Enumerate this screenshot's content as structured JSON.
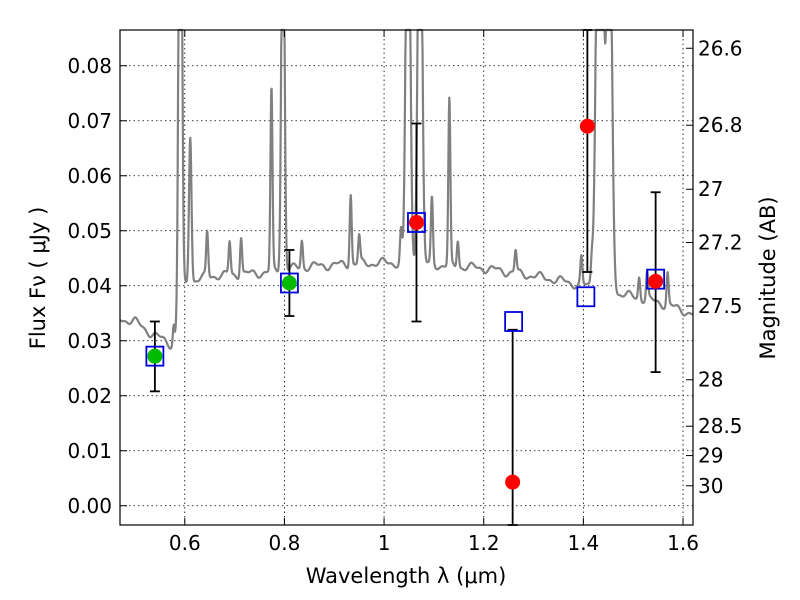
{
  "chart_data": {
    "type": "scatter",
    "xlabel": "Wavelength  λ (μm)",
    "ylabel": "Flux  Fν  ( μJy )",
    "ylabel_right": "Magnitude (AB)",
    "xlim": [
      0.47,
      1.62
    ],
    "ylim": [
      -0.0035,
      0.0865
    ],
    "x_ticks": [
      0.6,
      0.8,
      1.0,
      1.2,
      1.4,
      1.6
    ],
    "x_tick_labels": [
      "0.6",
      "0.8",
      "1",
      "1.2",
      "1.4",
      "1.6"
    ],
    "y_ticks": [
      0.0,
      0.01,
      0.02,
      0.03,
      0.04,
      0.05,
      0.06,
      0.07,
      0.08
    ],
    "y_tick_labels": [
      "0.00",
      "0.01",
      "0.02",
      "0.03",
      "0.04",
      "0.05",
      "0.06",
      "0.07",
      "0.08"
    ],
    "mag_ticks": [
      "26.6",
      "26.8",
      "27",
      "27.2",
      "27.5",
      "28",
      "28.5",
      "29",
      "30"
    ],
    "grid": true,
    "spectrum": {
      "color": "#808080",
      "continuum": [
        [
          0.47,
          0.034
        ],
        [
          0.5,
          0.0335
        ],
        [
          0.53,
          0.0315
        ],
        [
          0.56,
          0.03
        ],
        [
          0.575,
          0.0292
        ],
        [
          0.58,
          0.029
        ],
        [
          0.59,
          0.0395
        ],
        [
          0.62,
          0.041
        ],
        [
          0.65,
          0.0418
        ],
        [
          0.7,
          0.042
        ],
        [
          0.75,
          0.0423
        ],
        [
          0.8,
          0.043
        ],
        [
          0.85,
          0.0435
        ],
        [
          0.9,
          0.0438
        ],
        [
          0.95,
          0.044
        ],
        [
          1.0,
          0.0442
        ],
        [
          1.05,
          0.044
        ],
        [
          1.1,
          0.0438
        ],
        [
          1.15,
          0.0435
        ],
        [
          1.2,
          0.0432
        ],
        [
          1.25,
          0.0425
        ],
        [
          1.3,
          0.0418
        ],
        [
          1.35,
          0.041
        ],
        [
          1.4,
          0.04
        ],
        [
          1.45,
          0.039
        ],
        [
          1.5,
          0.038
        ],
        [
          1.55,
          0.037
        ],
        [
          1.6,
          0.0355
        ],
        [
          1.62,
          0.0348
        ]
      ],
      "lines": [
        [
          0.578,
          0.004,
          0.002
        ],
        [
          0.591,
          0.12,
          0.003
        ],
        [
          0.611,
          0.027,
          0.0025
        ],
        [
          0.645,
          0.008,
          0.002
        ],
        [
          0.69,
          0.006,
          0.002
        ],
        [
          0.713,
          0.007,
          0.002
        ],
        [
          0.774,
          0.033,
          0.002
        ],
        [
          0.797,
          0.08,
          0.003
        ],
        [
          0.835,
          0.005,
          0.002
        ],
        [
          0.933,
          0.013,
          0.002
        ],
        [
          0.95,
          0.005,
          0.002
        ],
        [
          1.034,
          0.006,
          0.002
        ],
        [
          1.048,
          0.09,
          0.004
        ],
        [
          1.072,
          0.09,
          0.004
        ],
        [
          1.096,
          0.012,
          0.002
        ],
        [
          1.131,
          0.03,
          0.002
        ],
        [
          1.148,
          0.005,
          0.002
        ],
        [
          1.264,
          0.004,
          0.002
        ],
        [
          1.396,
          0.005,
          0.002
        ],
        [
          1.417,
          0.004,
          0.002
        ],
        [
          1.433,
          0.12,
          0.006
        ],
        [
          1.452,
          0.08,
          0.005
        ],
        [
          1.512,
          0.004,
          0.002
        ],
        [
          1.528,
          0.005,
          0.002
        ],
        [
          1.569,
          0.006,
          0.002
        ]
      ]
    },
    "model_boxes": {
      "color": "#0000dd",
      "points": [
        [
          0.54,
          0.0272
        ],
        [
          0.81,
          0.0405
        ],
        [
          1.065,
          0.0515
        ],
        [
          1.26,
          0.0335
        ],
        [
          1.405,
          0.038
        ],
        [
          1.545,
          0.0412
        ]
      ]
    },
    "green_points": {
      "color": "#00bb00",
      "points": [
        {
          "x": 0.54,
          "y": 0.0272,
          "lo": 0.0208,
          "hi": 0.0335
        },
        {
          "x": 0.81,
          "y": 0.0405,
          "lo": 0.0345,
          "hi": 0.0465
        }
      ]
    },
    "red_points": {
      "color": "#ff0000",
      "points": [
        {
          "x": 1.065,
          "y": 0.0515,
          "lo": 0.0335,
          "hi": 0.0695
        },
        {
          "x": 1.258,
          "y": 0.0043,
          "lo": -0.0035,
          "hi": 0.032
        },
        {
          "x": 1.408,
          "y": 0.069,
          "lo": 0.0425,
          "hi": 0.0865
        },
        {
          "x": 1.545,
          "y": 0.0408,
          "lo": 0.0243,
          "hi": 0.057
        }
      ]
    }
  }
}
